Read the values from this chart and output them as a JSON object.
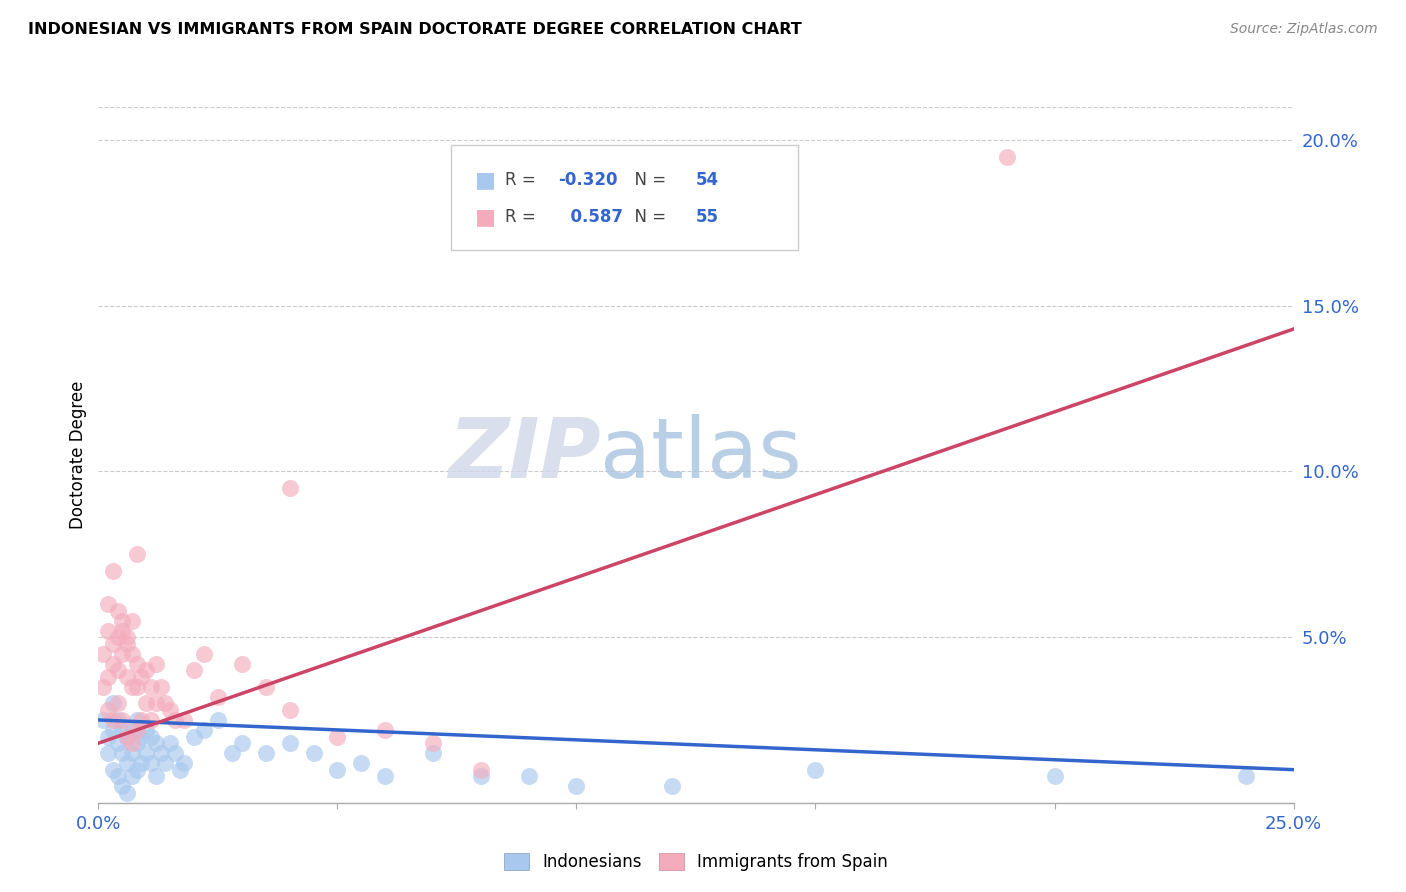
{
  "title": "INDONESIAN VS IMMIGRANTS FROM SPAIN DOCTORATE DEGREE CORRELATION CHART",
  "source": "Source: ZipAtlas.com",
  "ylabel": "Doctorate Degree",
  "watermark_zip": "ZIP",
  "watermark_atlas": "atlas",
  "legend_r_blue": "-0.320",
  "legend_n_blue": "54",
  "legend_r_pink": "0.587",
  "legend_n_pink": "55",
  "blue_color": "#A8C8EE",
  "pink_color": "#F4ACBC",
  "blue_line_color": "#3366CC",
  "pink_line_color": "#CC4466",
  "xlim": [
    0.0,
    0.25
  ],
  "ylim": [
    0.0,
    0.21
  ],
  "yticks": [
    0.0,
    0.05,
    0.1,
    0.15,
    0.2
  ],
  "ytick_labels": [
    "",
    "5.0%",
    "10.0%",
    "15.0%",
    "20.0%"
  ],
  "blue_line_y_start": 0.025,
  "blue_line_y_end": 0.01,
  "pink_line_y_start": 0.018,
  "pink_line_y_end": 0.143,
  "blue_scatter_x": [
    0.001,
    0.002,
    0.002,
    0.003,
    0.003,
    0.003,
    0.004,
    0.004,
    0.004,
    0.005,
    0.005,
    0.005,
    0.006,
    0.006,
    0.006,
    0.007,
    0.007,
    0.007,
    0.008,
    0.008,
    0.008,
    0.009,
    0.009,
    0.01,
    0.01,
    0.011,
    0.011,
    0.012,
    0.012,
    0.013,
    0.014,
    0.015,
    0.016,
    0.017,
    0.018,
    0.02,
    0.022,
    0.025,
    0.028,
    0.03,
    0.035,
    0.04,
    0.045,
    0.05,
    0.055,
    0.06,
    0.07,
    0.08,
    0.09,
    0.1,
    0.12,
    0.15,
    0.2,
    0.24
  ],
  "blue_scatter_y": [
    0.025,
    0.02,
    0.015,
    0.03,
    0.022,
    0.01,
    0.025,
    0.018,
    0.008,
    0.022,
    0.015,
    0.005,
    0.02,
    0.012,
    0.003,
    0.022,
    0.015,
    0.008,
    0.025,
    0.018,
    0.01,
    0.02,
    0.012,
    0.022,
    0.015,
    0.02,
    0.012,
    0.018,
    0.008,
    0.015,
    0.012,
    0.018,
    0.015,
    0.01,
    0.012,
    0.02,
    0.022,
    0.025,
    0.015,
    0.018,
    0.015,
    0.018,
    0.015,
    0.01,
    0.012,
    0.008,
    0.015,
    0.008,
    0.008,
    0.005,
    0.005,
    0.01,
    0.008,
    0.008
  ],
  "pink_scatter_x": [
    0.001,
    0.001,
    0.002,
    0.002,
    0.002,
    0.003,
    0.003,
    0.003,
    0.004,
    0.004,
    0.004,
    0.005,
    0.005,
    0.005,
    0.006,
    0.006,
    0.006,
    0.007,
    0.007,
    0.007,
    0.008,
    0.008,
    0.008,
    0.009,
    0.009,
    0.01,
    0.01,
    0.011,
    0.011,
    0.012,
    0.012,
    0.013,
    0.014,
    0.015,
    0.016,
    0.018,
    0.02,
    0.022,
    0.025,
    0.03,
    0.035,
    0.04,
    0.05,
    0.06,
    0.07,
    0.08,
    0.002,
    0.003,
    0.004,
    0.005,
    0.006,
    0.007,
    0.008,
    0.19,
    0.04
  ],
  "pink_scatter_y": [
    0.035,
    0.045,
    0.038,
    0.052,
    0.028,
    0.048,
    0.042,
    0.025,
    0.05,
    0.04,
    0.03,
    0.052,
    0.045,
    0.025,
    0.048,
    0.038,
    0.02,
    0.045,
    0.035,
    0.018,
    0.042,
    0.035,
    0.022,
    0.038,
    0.025,
    0.04,
    0.03,
    0.035,
    0.025,
    0.042,
    0.03,
    0.035,
    0.03,
    0.028,
    0.025,
    0.025,
    0.04,
    0.045,
    0.032,
    0.042,
    0.035,
    0.028,
    0.02,
    0.022,
    0.018,
    0.01,
    0.06,
    0.07,
    0.058,
    0.055,
    0.05,
    0.055,
    0.075,
    0.195,
    0.095
  ]
}
